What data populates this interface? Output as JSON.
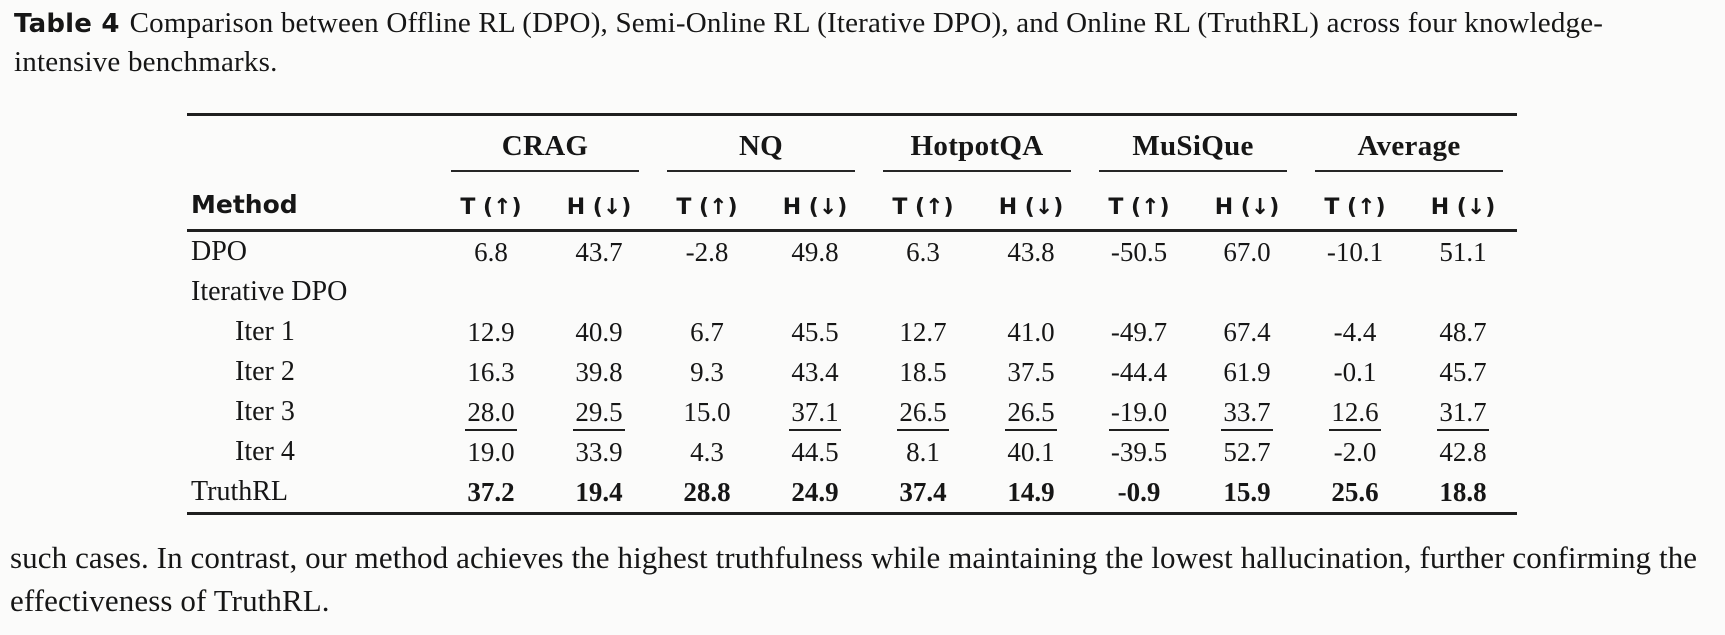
{
  "caption": {
    "label": "Table 4",
    "text": "Comparison between Offline RL (DPO), Semi-Online RL (Iterative DPO), and Online RL (TruthRL) across four knowledge-intensive benchmarks."
  },
  "table": {
    "method_header": "Method",
    "groups": [
      {
        "name": "CRAG"
      },
      {
        "name": "NQ"
      },
      {
        "name": "HotpotQA"
      },
      {
        "name": "MuSiQue"
      },
      {
        "name": "Average"
      }
    ],
    "subheaders": {
      "t": "T (↑)",
      "h": "H (↓)"
    },
    "rows": [
      {
        "method": "DPO",
        "indent": false,
        "bold": false,
        "values": [
          "6.8",
          "43.7",
          "-2.8",
          "49.8",
          "6.3",
          "43.8",
          "-50.5",
          "67.0",
          "-10.1",
          "51.1"
        ]
      },
      {
        "method": "Iterative DPO",
        "indent": false,
        "bold": false,
        "values": [
          "",
          "",
          "",
          "",
          "",
          "",
          "",
          "",
          "",
          ""
        ]
      },
      {
        "method": "Iter 1",
        "indent": true,
        "bold": false,
        "values": [
          "12.9",
          "40.9",
          "6.7",
          "45.5",
          "12.7",
          "41.0",
          "-49.7",
          "67.4",
          "-4.4",
          "48.7"
        ]
      },
      {
        "method": "Iter 2",
        "indent": true,
        "bold": false,
        "values": [
          "16.3",
          "39.8",
          "9.3",
          "43.4",
          "18.5",
          "37.5",
          "-44.4",
          "61.9",
          "-0.1",
          "45.7"
        ]
      },
      {
        "method": "Iter 3",
        "indent": true,
        "bold": false,
        "values": [
          "28.0",
          "29.5",
          "15.0",
          "37.1",
          "26.5",
          "26.5",
          "-19.0",
          "33.7",
          "12.6",
          "31.7"
        ],
        "underline": [
          true,
          true,
          false,
          true,
          true,
          true,
          true,
          true,
          true,
          true
        ]
      },
      {
        "method": "Iter 4",
        "indent": true,
        "bold": false,
        "values": [
          "19.0",
          "33.9",
          "4.3",
          "44.5",
          "8.1",
          "40.1",
          "-39.5",
          "52.7",
          "-2.0",
          "42.8"
        ]
      },
      {
        "method": "TruthRL",
        "indent": false,
        "bold": true,
        "values": [
          "37.2",
          "19.4",
          "28.8",
          "24.9",
          "37.4",
          "14.9",
          "-0.9",
          "15.9",
          "25.6",
          "18.8"
        ]
      }
    ]
  },
  "body": {
    "text": "such cases. In contrast, our method achieves the highest truthfulness while maintaining the lowest hallucination, further confirming the effectiveness of TruthRL."
  }
}
